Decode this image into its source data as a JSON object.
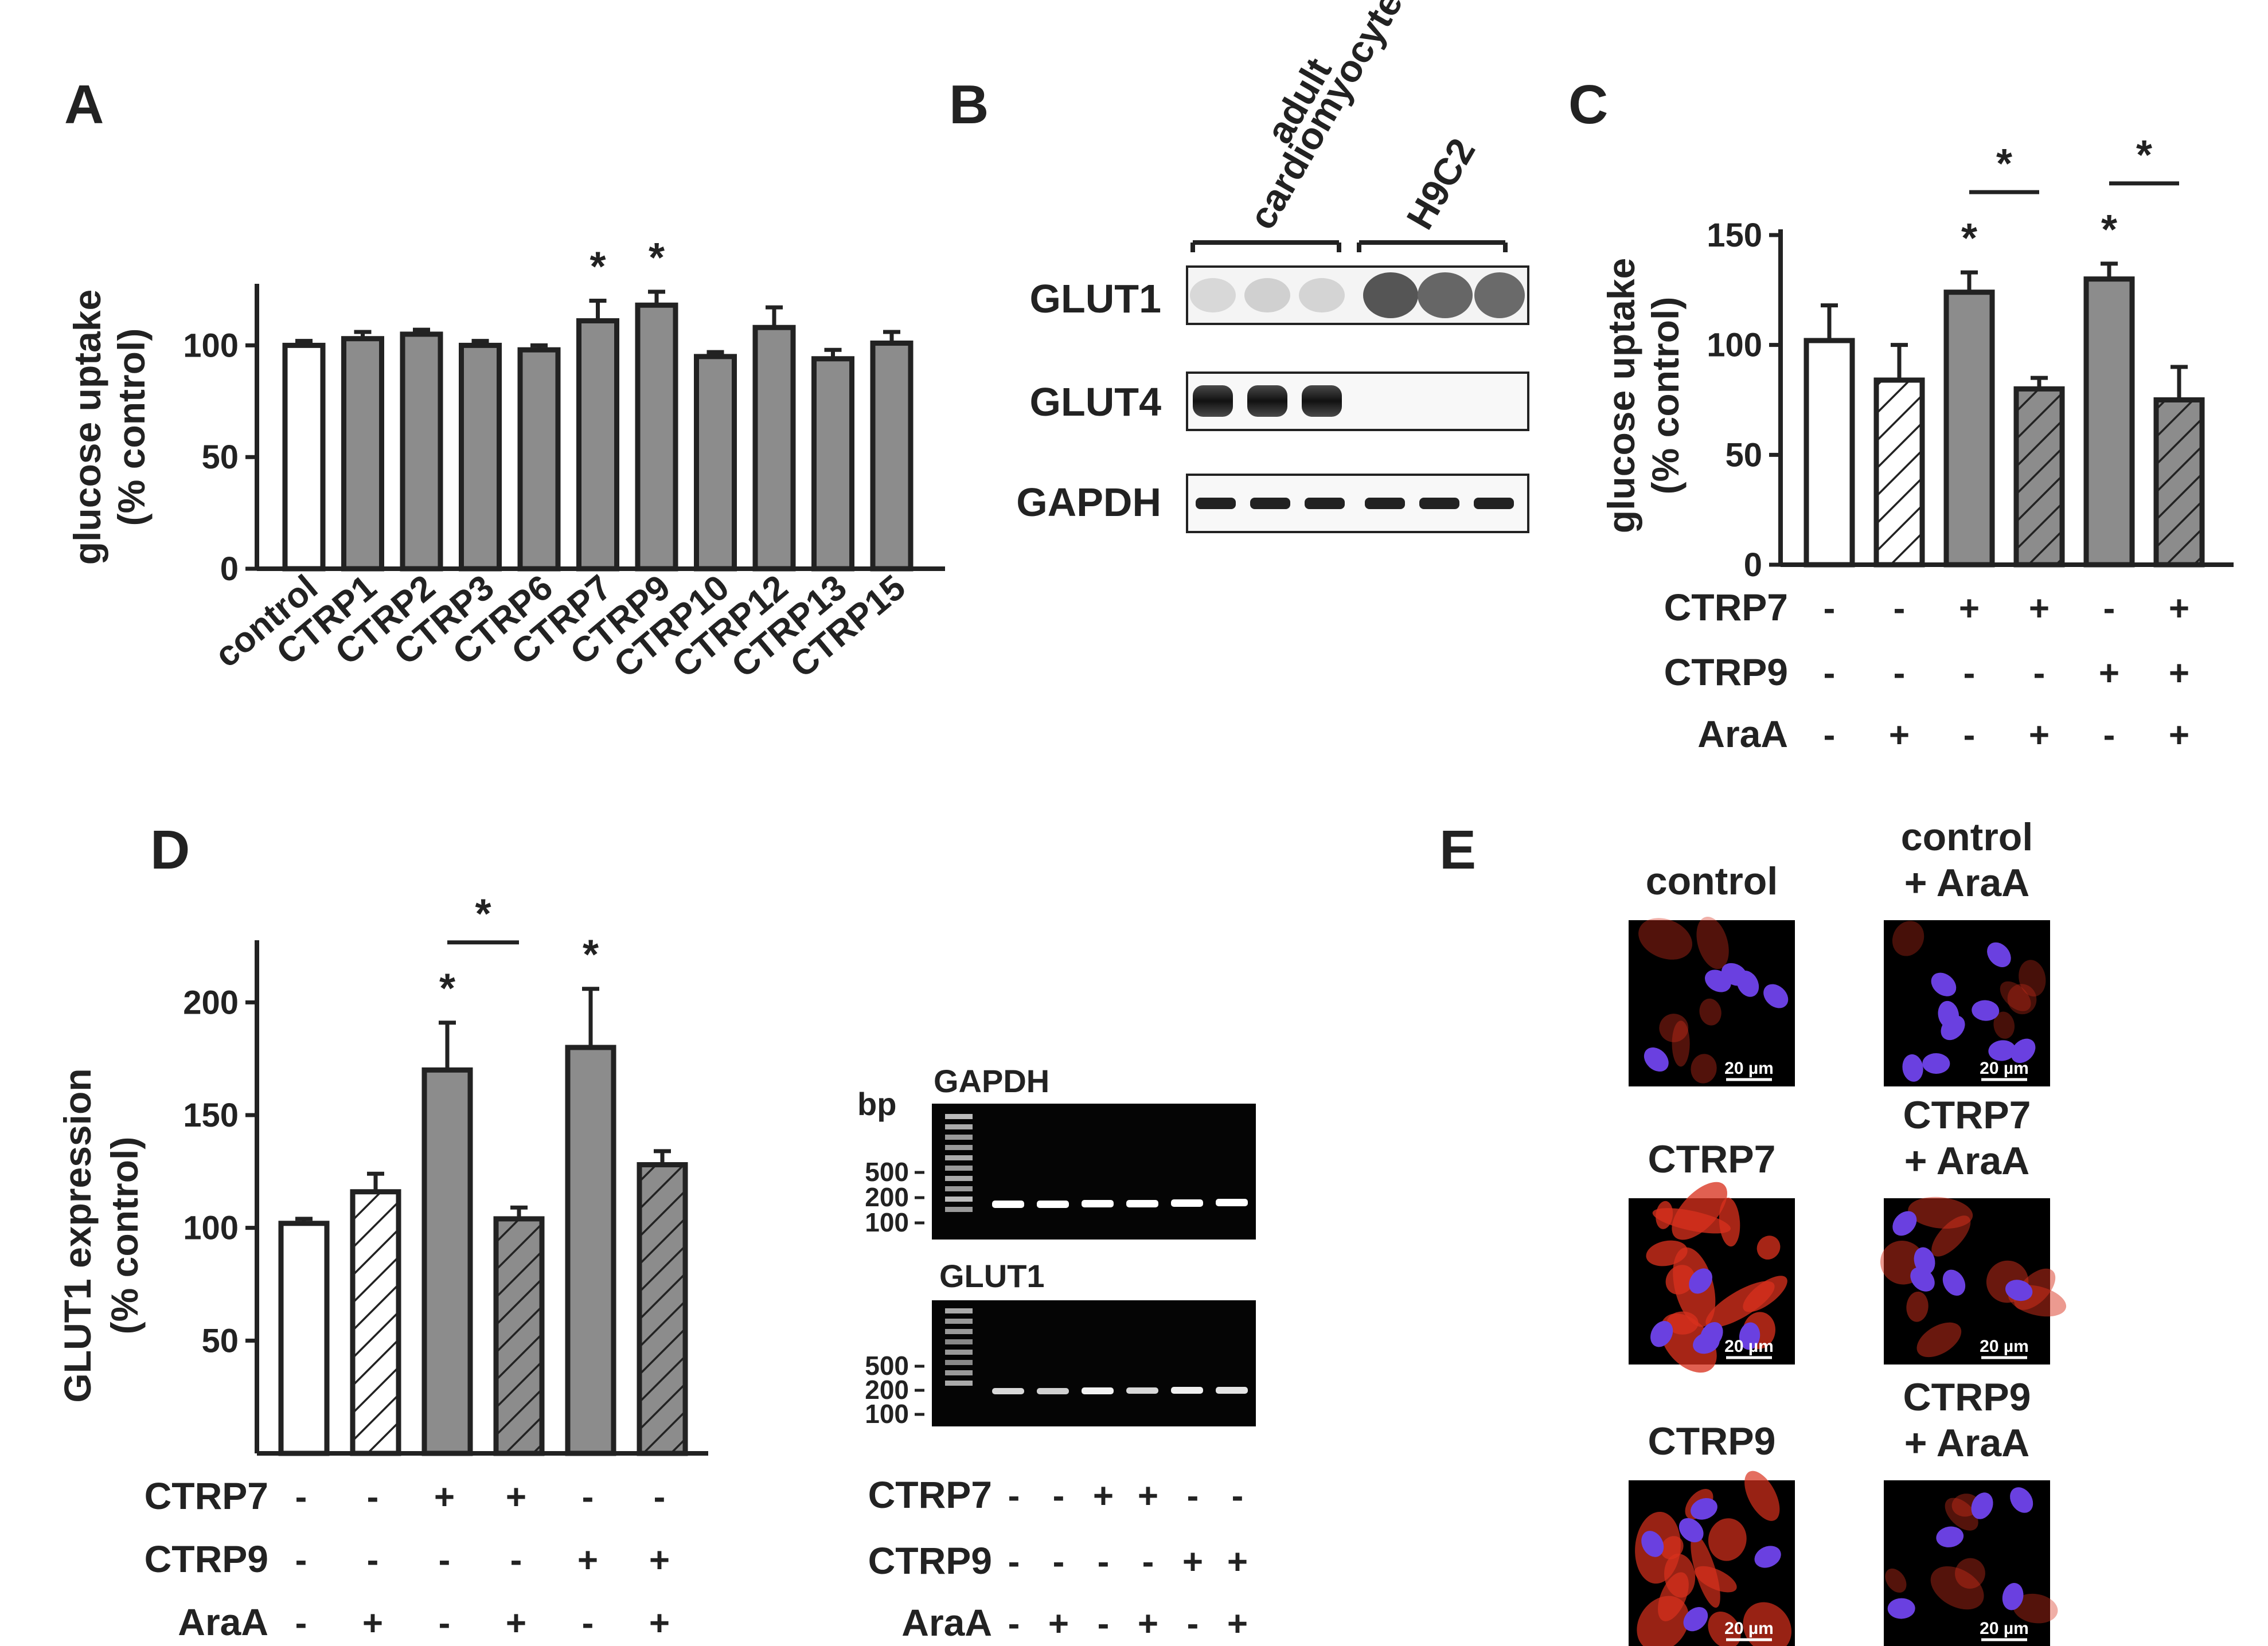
{
  "colors": {
    "bar_gray": "#8c8c8c",
    "bar_white": "#ffffff",
    "axis": "#222222",
    "if_red": "#d8301c",
    "if_nucleus": "#6a40e0"
  },
  "panels": {
    "A": {
      "letter": "A",
      "ylabel_line1": "glucose uptake",
      "ylabel_line2": "(% control)"
    },
    "B": {
      "letter": "B",
      "group1_line1": "adult",
      "group1_line2": "cardiomyocyte",
      "group2": "H9C2",
      "rows": [
        "GLUT1",
        "GLUT4",
        "GAPDH"
      ]
    },
    "C": {
      "letter": "C",
      "ylabel_line1": "glucose uptake",
      "ylabel_line2": "(% control)",
      "conditions": [
        "CTRP7",
        "CTRP9",
        "AraA"
      ]
    },
    "D": {
      "letter": "D",
      "ylabel_line1": "GLUT1 expression",
      "ylabel_line2": "(% control)",
      "conditions": [
        "CTRP7",
        "CTRP9",
        "AraA"
      ]
    },
    "gel": {
      "bp_label": "bp",
      "gel1_title": "GAPDH",
      "gel2_title": "GLUT1",
      "markers": [
        "500",
        "200",
        "100"
      ],
      "conditions": [
        "CTRP7",
        "CTRP9",
        "AraA"
      ]
    },
    "E": {
      "letter": "E",
      "captions": [
        [
          "control"
        ],
        [
          "control",
          "+ AraA"
        ],
        [
          "CTRP7"
        ],
        [
          "CTRP7",
          "+ AraA"
        ],
        [
          "CTRP9"
        ],
        [
          "CTRP9",
          "+ AraA"
        ]
      ],
      "scale_label": "20 µm"
    }
  },
  "chart_data": [
    {
      "panel": "A",
      "type": "bar",
      "categories": [
        "control",
        "CTRP1",
        "CTRP2",
        "CTRP3",
        "CTRP6",
        "CTRP7",
        "CTRP9",
        "CTRP10",
        "CTRP12",
        "CTRP13",
        "CTRP15"
      ],
      "values": [
        100,
        103,
        105,
        100,
        98,
        111,
        118,
        95,
        108,
        94,
        101
      ],
      "errors": [
        2,
        3,
        2,
        2,
        2,
        9,
        6,
        2,
        9,
        4,
        5
      ],
      "fills": [
        "white",
        "gray",
        "gray",
        "gray",
        "gray",
        "gray",
        "gray",
        "gray",
        "gray",
        "gray",
        "gray"
      ],
      "significant": [
        false,
        false,
        false,
        false,
        false,
        true,
        true,
        false,
        false,
        false,
        false
      ],
      "yticks": [
        0,
        50,
        100
      ],
      "ylim": [
        0,
        125
      ]
    },
    {
      "panel": "C",
      "type": "bar",
      "values": [
        102,
        84,
        124,
        80,
        130,
        75
      ],
      "errors": [
        16,
        16,
        9,
        5,
        7,
        15
      ],
      "fills": [
        "white",
        "white-hatched",
        "gray",
        "gray-hatched",
        "gray",
        "gray-hatched"
      ],
      "significant": [
        false,
        false,
        true,
        false,
        true,
        false
      ],
      "brackets": [
        [
          2,
          3
        ],
        [
          4,
          5
        ]
      ],
      "conditions": {
        "CTRP7": [
          "-",
          "-",
          "+",
          "+",
          "-",
          "+"
        ],
        "CTRP9": [
          "-",
          "-",
          "-",
          "-",
          "+",
          "+"
        ],
        "AraA": [
          "-",
          "+",
          "-",
          "+",
          "-",
          "+"
        ]
      },
      "yticks": [
        0,
        50,
        100,
        150
      ],
      "ylim": [
        0,
        150
      ]
    },
    {
      "panel": "D",
      "type": "bar",
      "values": [
        102,
        116,
        170,
        104,
        180,
        128
      ],
      "errors": [
        2,
        8,
        21,
        5,
        26,
        6
      ],
      "fills": [
        "white",
        "white-hatched",
        "gray",
        "gray-hatched",
        "gray",
        "gray-hatched"
      ],
      "significant": [
        false,
        false,
        true,
        false,
        true,
        false
      ],
      "brackets": [
        [
          2,
          3
        ]
      ],
      "conditions": {
        "CTRP7": [
          "-",
          "-",
          "+",
          "+",
          "-",
          "-"
        ],
        "CTRP9": [
          "-",
          "-",
          "-",
          "-",
          "+",
          "+"
        ],
        "AraA": [
          "-",
          "+",
          "-",
          "+",
          "-",
          "+"
        ]
      },
      "yticks": [
        50,
        100,
        150,
        200
      ],
      "ylim": [
        0,
        225
      ]
    },
    {
      "panel": "gel",
      "type": "table",
      "conditions": {
        "CTRP7": [
          "-",
          "-",
          "+",
          "+",
          "-",
          "-"
        ],
        "CTRP9": [
          "-",
          "-",
          "-",
          "-",
          "+",
          "+"
        ],
        "AraA": [
          "-",
          "+",
          "-",
          "+",
          "-",
          "+"
        ]
      }
    }
  ]
}
